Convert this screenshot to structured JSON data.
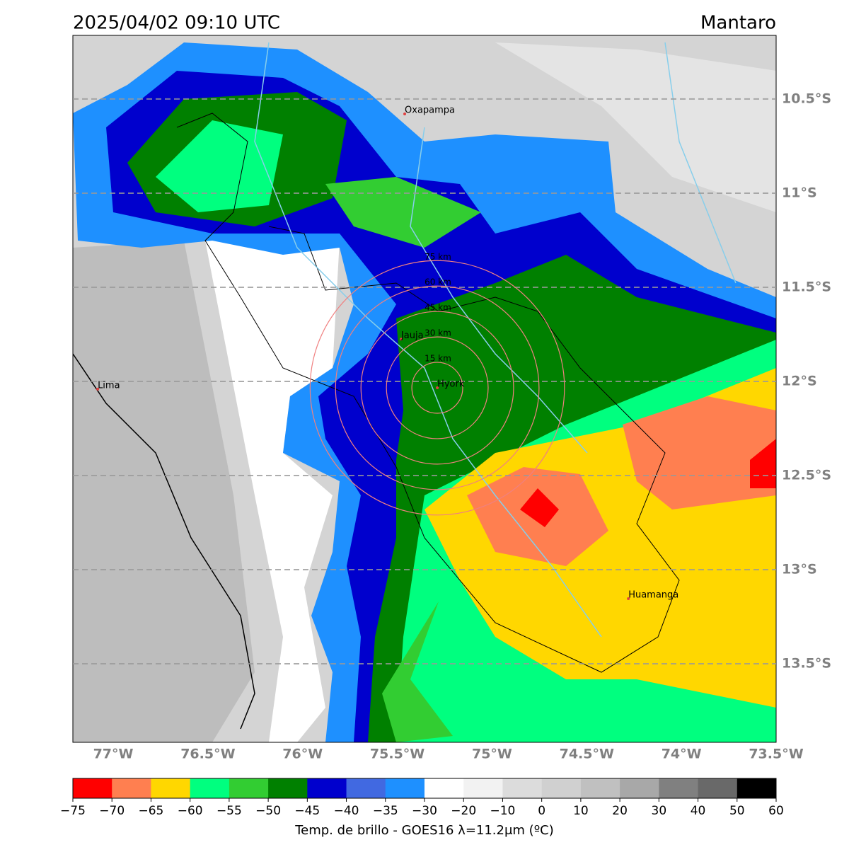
{
  "title": "2025/04/02 09:10 UTC",
  "region": "Mantaro",
  "map": {
    "lon_range": [
      -77.213,
      -73.5
    ],
    "lat_range": [
      -10.162,
      -13.917
    ],
    "lat_ticks": [
      {
        "value": -10.5,
        "label": "10.5°S"
      },
      {
        "value": -11,
        "label": "11°S"
      },
      {
        "value": -11.5,
        "label": "11.5°S"
      },
      {
        "value": -12,
        "label": "12°S"
      },
      {
        "value": -12.5,
        "label": "12.5°S"
      },
      {
        "value": -13,
        "label": "13°S"
      },
      {
        "value": -13.5,
        "label": "13.5°S"
      }
    ],
    "lon_ticks": [
      {
        "value": -77,
        "label": "77°W"
      },
      {
        "value": -76.5,
        "label": "76.5°W"
      },
      {
        "value": -76,
        "label": "76°W"
      },
      {
        "value": -75.5,
        "label": "75.5°W"
      },
      {
        "value": -75,
        "label": "75°W"
      },
      {
        "value": -74.5,
        "label": "74.5°W"
      },
      {
        "value": -74,
        "label": "74°W"
      },
      {
        "value": -73.5,
        "label": "73.5°W"
      }
    ],
    "cities": [
      {
        "name": "Oxapampa",
        "lon": -75.461,
        "lat": -10.579
      },
      {
        "name": "Lima",
        "lon": -77.082,
        "lat": -12.041
      },
      {
        "name": "Jauja",
        "lon": -75.48,
        "lat": -11.776
      },
      {
        "name": "Hyork",
        "lon": -75.289,
        "lat": -12.034
      },
      {
        "name": "Huamanga",
        "lon": -74.28,
        "lat": -13.154
      }
    ],
    "rings": {
      "center_lon": -75.289,
      "center_lat": -12.034,
      "radii": [
        {
          "value": 15,
          "label": "15 km"
        },
        {
          "value": 30,
          "label": "30 km"
        },
        {
          "value": 45,
          "label": "45 km"
        },
        {
          "value": 60,
          "label": "60 km"
        },
        {
          "value": 75,
          "label": "75 km"
        }
      ]
    }
  },
  "colorbar": {
    "ticks": [
      {
        "value": -75,
        "label": "−75"
      },
      {
        "value": -70,
        "label": "−70"
      },
      {
        "value": -65,
        "label": "−65"
      },
      {
        "value": -60,
        "label": "−60"
      },
      {
        "value": -55,
        "label": "−55"
      },
      {
        "value": -50,
        "label": "−50"
      },
      {
        "value": -45,
        "label": "−45"
      },
      {
        "value": -40,
        "label": "−40"
      },
      {
        "value": -35,
        "label": "−35"
      },
      {
        "value": -30,
        "label": "−30"
      },
      {
        "value": -20,
        "label": "−20"
      },
      {
        "value": -10,
        "label": "−10"
      },
      0,
      10,
      20,
      30,
      40,
      50,
      60
    ],
    "colors": [
      "#ff0000",
      "#ff7f50",
      "#ffd700",
      "#00ff7f",
      "#32cd32",
      "#008000",
      "#0000cd",
      "#4169e1",
      "#1e90ff",
      "#ffffff",
      "#f2f2f2",
      "#dcdcdc",
      "#d0d0d0",
      "#c0c0c0",
      "#a8a8a8",
      "#808080",
      "#696969",
      "#000000"
    ],
    "label": "Temp. de brillo - GOES16 λ=11.2μm (ºC)"
  }
}
